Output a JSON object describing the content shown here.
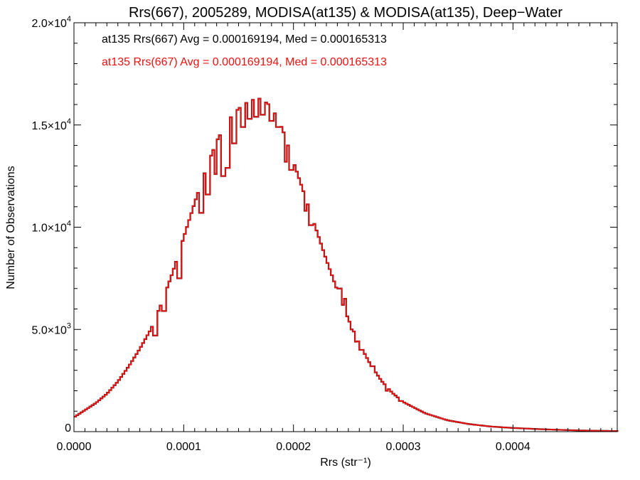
{
  "chart_data": {
    "type": "bar",
    "title": "Rrs(667), 2005289, MODISA(at135) & MODISA(at135), Deep−Water",
    "xlabel": "Rrs (str⁻¹)",
    "ylabel": "Number of Observations",
    "xlim": [
      0.0,
      0.000495
    ],
    "ylim": [
      0,
      20000
    ],
    "x_ticks": [
      {
        "value": 0.0,
        "label": "0.0000"
      },
      {
        "value": 0.0001,
        "label": "0.0001"
      },
      {
        "value": 0.0002,
        "label": "0.0002"
      },
      {
        "value": 0.0003,
        "label": "0.0003"
      },
      {
        "value": 0.0004,
        "label": "0.0004"
      }
    ],
    "y_ticks": [
      {
        "value": 0,
        "mantissa": "0",
        "exponent": ""
      },
      {
        "value": 5000,
        "mantissa": "5.0×10",
        "exponent": "3"
      },
      {
        "value": 10000,
        "mantissa": "1.0×10",
        "exponent": "4"
      },
      {
        "value": 15000,
        "mantissa": "1.5×10",
        "exponent": "4"
      },
      {
        "value": 20000,
        "mantissa": "2.0×10",
        "exponent": "4"
      }
    ],
    "grid": false,
    "legend_position": "top-left",
    "series": [
      {
        "name": "at135 Rrs(667) Avg = 0.000169194, Med = 0.000165313",
        "color": "#000000",
        "bin_width": 2e-06,
        "curve": [
          [
            0.0,
            700
          ],
          [
            1e-05,
            1050
          ],
          [
            2e-05,
            1400
          ],
          [
            3e-05,
            1850
          ],
          [
            4e-05,
            2450
          ],
          [
            5e-05,
            3200
          ],
          [
            6e-05,
            4050
          ],
          [
            7e-05,
            5000
          ],
          [
            8e-05,
            6300
          ],
          [
            9e-05,
            7800
          ],
          [
            0.0001,
            9500
          ],
          [
            0.00011,
            11200
          ],
          [
            0.00012,
            12800
          ],
          [
            0.00013,
            14200
          ],
          [
            0.00014,
            15200
          ],
          [
            0.00015,
            15800
          ],
          [
            0.00016,
            16200
          ],
          [
            0.00017,
            16300
          ],
          [
            0.00018,
            15900
          ],
          [
            0.00019,
            14800
          ],
          [
            0.0002,
            13200
          ],
          [
            0.00021,
            11600
          ],
          [
            0.00022,
            10000
          ],
          [
            0.00023,
            8400
          ],
          [
            0.00024,
            6900
          ],
          [
            0.00025,
            5500
          ],
          [
            0.00026,
            4300
          ],
          [
            0.00027,
            3300
          ],
          [
            0.00028,
            2500
          ],
          [
            0.00029,
            1900
          ],
          [
            0.0003,
            1450
          ],
          [
            0.00032,
            900
          ],
          [
            0.00034,
            560
          ],
          [
            0.00036,
            370
          ],
          [
            0.00038,
            250
          ],
          [
            0.0004,
            180
          ],
          [
            0.00043,
            110
          ],
          [
            0.00046,
            60
          ],
          [
            0.000495,
            30
          ]
        ],
        "dips": [
          [
            0.000166,
            15400
          ],
          [
            0.000172,
            15500
          ],
          [
            0.000146,
            14100
          ],
          [
            0.000154,
            14900
          ],
          [
            0.00016,
            15300
          ],
          [
            0.00018,
            15200
          ],
          [
            0.000186,
            14900
          ],
          [
            0.000136,
            12500
          ],
          [
            0.00014,
            12900
          ],
          [
            0.000129,
            12600
          ],
          [
            0.000122,
            11600
          ],
          [
            0.000116,
            10700
          ],
          [
            9.6e-05,
            7500
          ],
          [
            8.2e-05,
            5900
          ],
          [
            7.4e-05,
            4700
          ],
          [
            0.000193,
            13200
          ],
          [
            0.000198,
            12800
          ],
          [
            0.000211,
            10800
          ],
          [
            0.000216,
            10100
          ],
          [
            0.000242,
            7000
          ],
          [
            0.000247,
            6500
          ],
          [
            0.000253,
            5000
          ],
          [
            0.000257,
            4400
          ],
          [
            0.000262,
            4000
          ],
          [
            0.000272,
            3200
          ],
          [
            0.000285,
            2000
          ],
          [
            0.000297,
            1500
          ]
        ]
      },
      {
        "name": "at135 Rrs(667) Avg = 0.000169194, Med = 0.000165313",
        "color": "#ee1111",
        "bin_width": 2e-06,
        "same_as_series": 0
      }
    ]
  }
}
